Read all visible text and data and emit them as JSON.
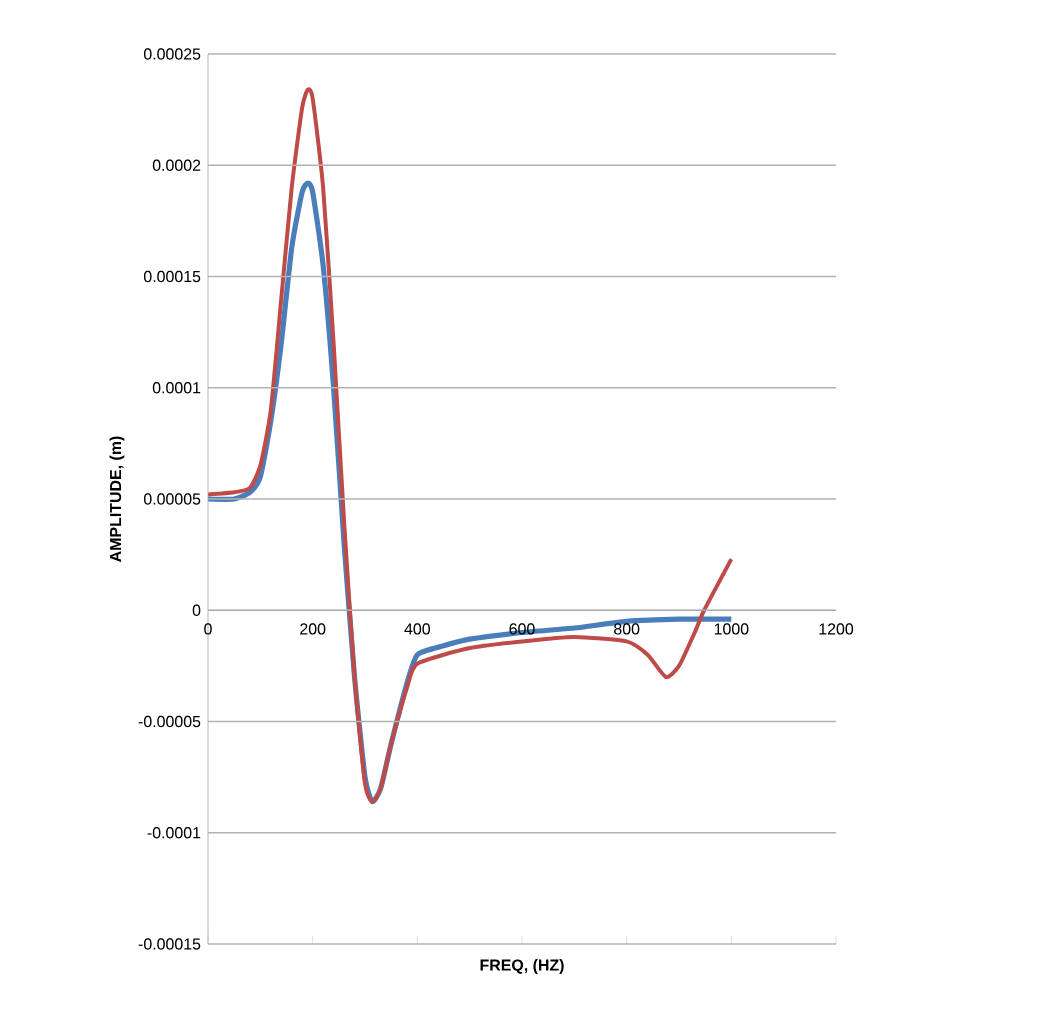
{
  "chart_data": {
    "type": "line",
    "xlabel": "FREQ, (HZ)",
    "ylabel": "AMPLITUDE,  (m)",
    "xlim": [
      0,
      1200
    ],
    "xticks": [
      0,
      200,
      400,
      600,
      800,
      1000,
      1200
    ],
    "ylim": [
      -0.00015,
      0.00025
    ],
    "yticks": [
      {
        "value": -0.00015,
        "label": "-0.00015"
      },
      {
        "value": -0.0001,
        "label": "-0.0001"
      },
      {
        "value": -5e-05,
        "label": "-0.00005"
      },
      {
        "value": 0,
        "label": "0"
      },
      {
        "value": 5e-05,
        "label": "0.00005"
      },
      {
        "value": 0.0001,
        "label": "0.0001"
      },
      {
        "value": 0.00015,
        "label": "0.00015"
      },
      {
        "value": 0.0002,
        "label": "0.0002"
      },
      {
        "value": 0.00025,
        "label": "0.00025"
      }
    ],
    "grid": "y",
    "marker": "none",
    "line_style": "solid",
    "series": [
      {
        "color": "#4a7ebb",
        "x": [
          0,
          50,
          80,
          100,
          120,
          140,
          160,
          180,
          191,
          200,
          220,
          240,
          260,
          280,
          300,
          314,
          330,
          350,
          380,
          400,
          450,
          500,
          600,
          700,
          800,
          900,
          1000
        ],
        "values": [
          5e-05,
          5e-05,
          5.3e-05,
          6e-05,
          8.5e-05,
          0.00012,
          0.000163,
          0.000188,
          0.000192,
          0.000188,
          0.000155,
          0.0001,
          3e-05,
          -3e-05,
          -7.5e-05,
          -8.6e-05,
          -8e-05,
          -6e-05,
          -3.3e-05,
          -2e-05,
          -1.6e-05,
          -1.3e-05,
          -1e-05,
          -8e-06,
          -5e-06,
          -4e-06,
          -4e-06
        ]
      },
      {
        "color": "#be4b48",
        "x": [
          0,
          50,
          80,
          100,
          120,
          140,
          160,
          180,
          191,
          200,
          220,
          240,
          260,
          280,
          300,
          314,
          330,
          350,
          380,
          400,
          500,
          600,
          700,
          800,
          840,
          875,
          900,
          930,
          948,
          1000
        ],
        "values": [
          5.2e-05,
          5.3e-05,
          5.5e-05,
          6.5e-05,
          9e-05,
          0.00014,
          0.00019,
          0.000226,
          0.000234,
          0.00023,
          0.00019,
          0.00012,
          4e-05,
          -3e-05,
          -7.8e-05,
          -8.6e-05,
          -8e-05,
          -6e-05,
          -3.5e-05,
          -2.4e-05,
          -1.7e-05,
          -1.4e-05,
          -1.2e-05,
          -1.4e-05,
          -2e-05,
          -3e-05,
          -2.5e-05,
          -1e-05,
          0,
          2.3e-05
        ]
      }
    ]
  }
}
